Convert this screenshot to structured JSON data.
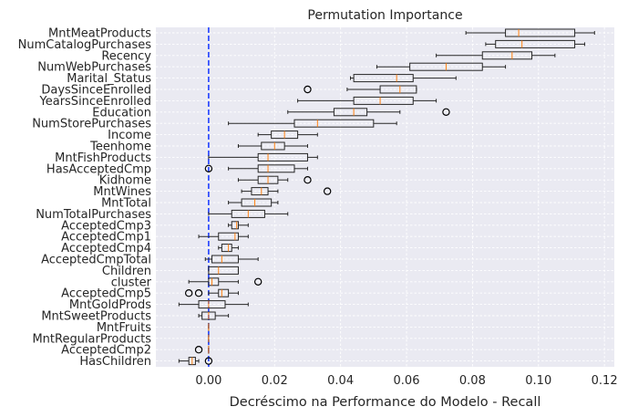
{
  "chart_data": {
    "type": "boxplot",
    "orientation": "horizontal",
    "title": "Permutation Importance",
    "xlabel": "Decréscimo na Performance do Modelo - Recall",
    "ylabel": "",
    "xlim": [
      -0.016,
      0.123
    ],
    "xticks": [
      0.0,
      0.02,
      0.04,
      0.06,
      0.08,
      0.1,
      0.12
    ],
    "xtick_labels": [
      "0.00",
      "0.02",
      "0.04",
      "0.06",
      "0.08",
      "0.10",
      "0.12"
    ],
    "reference_line": {
      "x": 0.0,
      "style": "dashed",
      "color": "#1f3fff"
    },
    "grid": true,
    "box_color": "#262626",
    "median_color": "#ff7f0e",
    "background": "#eaeaf2",
    "features": [
      {
        "name": "MntMeatProducts",
        "whislo": 0.078,
        "q1": 0.09,
        "med": 0.094,
        "q3": 0.111,
        "whishi": 0.117,
        "fliers": []
      },
      {
        "name": "NumCatalogPurchases",
        "whislo": 0.084,
        "q1": 0.087,
        "med": 0.095,
        "q3": 0.111,
        "whishi": 0.114,
        "fliers": []
      },
      {
        "name": "Recency",
        "whislo": 0.069,
        "q1": 0.083,
        "med": 0.092,
        "q3": 0.098,
        "whishi": 0.105,
        "fliers": []
      },
      {
        "name": "NumWebPurchases",
        "whislo": 0.051,
        "q1": 0.061,
        "med": 0.072,
        "q3": 0.083,
        "whishi": 0.09,
        "fliers": []
      },
      {
        "name": "Marital_Status",
        "whislo": 0.043,
        "q1": 0.044,
        "med": 0.057,
        "q3": 0.062,
        "whishi": 0.075,
        "fliers": []
      },
      {
        "name": "DaysSinceEnrolled",
        "whislo": 0.042,
        "q1": 0.052,
        "med": 0.058,
        "q3": 0.063,
        "whishi": 0.063,
        "fliers": [
          0.03
        ]
      },
      {
        "name": "YearsSinceEnrolled",
        "whislo": 0.027,
        "q1": 0.044,
        "med": 0.052,
        "q3": 0.062,
        "whishi": 0.069,
        "fliers": []
      },
      {
        "name": "Education",
        "whislo": 0.024,
        "q1": 0.038,
        "med": 0.044,
        "q3": 0.048,
        "whishi": 0.058,
        "fliers": [
          0.072
        ]
      },
      {
        "name": "NumStorePurchases",
        "whislo": 0.006,
        "q1": 0.026,
        "med": 0.033,
        "q3": 0.05,
        "whishi": 0.057,
        "fliers": []
      },
      {
        "name": "Income",
        "whislo": 0.015,
        "q1": 0.019,
        "med": 0.023,
        "q3": 0.027,
        "whishi": 0.033,
        "fliers": []
      },
      {
        "name": "Teenhome",
        "whislo": 0.009,
        "q1": 0.016,
        "med": 0.02,
        "q3": 0.023,
        "whishi": 0.03,
        "fliers": []
      },
      {
        "name": "MntFishProducts",
        "whislo": 0.0,
        "q1": 0.015,
        "med": 0.018,
        "q3": 0.03,
        "whishi": 0.033,
        "fliers": []
      },
      {
        "name": "HasAcceptedCmp",
        "whislo": 0.006,
        "q1": 0.015,
        "med": 0.018,
        "q3": 0.026,
        "whishi": 0.03,
        "fliers": [
          0.0
        ]
      },
      {
        "name": "Kidhome",
        "whislo": 0.009,
        "q1": 0.015,
        "med": 0.018,
        "q3": 0.021,
        "whishi": 0.024,
        "fliers": [
          0.03
        ]
      },
      {
        "name": "MntWines",
        "whislo": 0.01,
        "q1": 0.013,
        "med": 0.016,
        "q3": 0.018,
        "whishi": 0.021,
        "fliers": [
          0.036
        ]
      },
      {
        "name": "MntTotal",
        "whislo": 0.006,
        "q1": 0.01,
        "med": 0.014,
        "q3": 0.019,
        "whishi": 0.021,
        "fliers": []
      },
      {
        "name": "NumTotalPurchases",
        "whislo": 0.0,
        "q1": 0.007,
        "med": 0.012,
        "q3": 0.017,
        "whishi": 0.024,
        "fliers": []
      },
      {
        "name": "AcceptedCmp3",
        "whislo": 0.006,
        "q1": 0.007,
        "med": 0.0085,
        "q3": 0.009,
        "whishi": 0.012,
        "fliers": []
      },
      {
        "name": "AcceptedCmp1",
        "whislo": -0.003,
        "q1": 0.003,
        "med": 0.008,
        "q3": 0.009,
        "whishi": 0.012,
        "fliers": []
      },
      {
        "name": "AcceptedCmp4",
        "whislo": 0.003,
        "q1": 0.004,
        "med": 0.006,
        "q3": 0.007,
        "whishi": 0.009,
        "fliers": []
      },
      {
        "name": "AcceptedCmpTotal",
        "whislo": -0.001,
        "q1": 0.001,
        "med": 0.004,
        "q3": 0.009,
        "whishi": 0.015,
        "fliers": []
      },
      {
        "name": "Children",
        "whislo": 0.0,
        "q1": 0.0,
        "med": 0.003,
        "q3": 0.009,
        "whishi": 0.009,
        "fliers": []
      },
      {
        "name": "cluster",
        "whislo": -0.006,
        "q1": 0.0,
        "med": 0.001,
        "q3": 0.003,
        "whishi": 0.009,
        "fliers": [
          0.015
        ]
      },
      {
        "name": "AcceptedCmp5",
        "whislo": 0.0,
        "q1": 0.003,
        "med": 0.004,
        "q3": 0.006,
        "whishi": 0.009,
        "fliers": [
          -0.006,
          -0.003
        ]
      },
      {
        "name": "MntGoldProds",
        "whislo": -0.009,
        "q1": -0.003,
        "med": 0.0,
        "q3": 0.005,
        "whishi": 0.012,
        "fliers": []
      },
      {
        "name": "MntSweetProducts",
        "whislo": -0.003,
        "q1": -0.002,
        "med": 0.0,
        "q3": 0.002,
        "whishi": 0.006,
        "fliers": []
      },
      {
        "name": "MntFruits",
        "whislo": 0.0,
        "q1": 0.0,
        "med": 0.0,
        "q3": 0.0,
        "whishi": 0.0,
        "fliers": []
      },
      {
        "name": "MntRegularProducts",
        "whislo": 0.0,
        "q1": 0.0,
        "med": 0.0,
        "q3": 0.0,
        "whishi": 0.0,
        "fliers": []
      },
      {
        "name": "AcceptedCmp2",
        "whislo": 0.0,
        "q1": 0.0,
        "med": 0.0,
        "q3": 0.0,
        "whishi": 0.0,
        "fliers": [
          -0.003
        ]
      },
      {
        "name": "HasChildren",
        "whislo": -0.009,
        "q1": -0.006,
        "med": -0.005,
        "q3": -0.004,
        "whishi": -0.003,
        "fliers": [
          0.0
        ]
      }
    ]
  }
}
